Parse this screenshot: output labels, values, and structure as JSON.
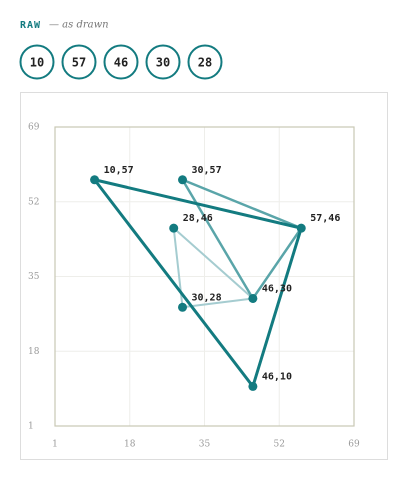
{
  "header": {
    "label": "RAW",
    "note": "— as drawn",
    "values": [
      10,
      57,
      46,
      30,
      28
    ]
  },
  "chart_data": {
    "type": "line",
    "xlim": [
      1,
      69
    ],
    "ylim": [
      1,
      69
    ],
    "xticks": [
      1,
      18,
      35,
      52,
      69
    ],
    "yticks": [
      1,
      18,
      35,
      52,
      69
    ],
    "grid": true,
    "series": [
      {
        "color": "#a5ccd0",
        "line_width": 2,
        "x": [
          28,
          46,
          30,
          28
        ],
        "values": [
          46,
          30,
          28,
          46
        ]
      },
      {
        "color": "#5aa5a9",
        "line_width": 2.5,
        "x": [
          30,
          57,
          46,
          30
        ],
        "values": [
          57,
          46,
          30,
          57
        ]
      },
      {
        "color": "#137b80",
        "line_width": 3,
        "x": [
          10,
          57,
          46,
          10
        ],
        "values": [
          57,
          46,
          10,
          57
        ]
      }
    ],
    "points": {
      "color": "#137b80",
      "x": [
        10,
        30,
        57,
        28,
        46,
        30,
        46
      ],
      "values": [
        57,
        57,
        46,
        46,
        30,
        28,
        10
      ],
      "labels": [
        "10,57",
        "30,57",
        "57,46",
        "28,46",
        "46,30",
        "30,28",
        "46,10"
      ]
    }
  }
}
